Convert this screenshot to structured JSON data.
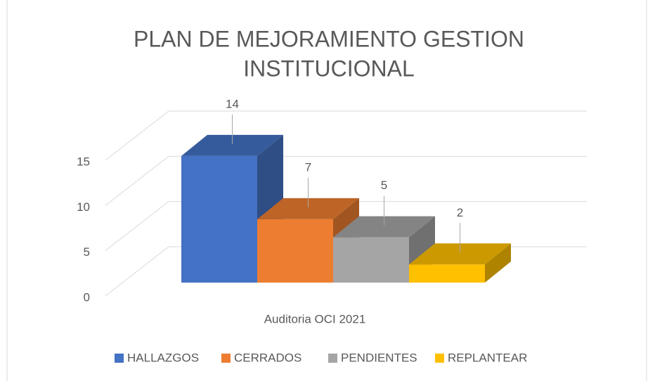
{
  "chart_data": {
    "type": "bar3d",
    "title": [
      "PLAN DE MEJORAMIENTO GESTION",
      "INSTITUCIONAL"
    ],
    "categories": [
      "Auditoria OCI 2021"
    ],
    "series": [
      {
        "name": "HALLAZGOS",
        "color": "#4472c4",
        "values": [
          14
        ]
      },
      {
        "name": "CERRADOS",
        "color": "#ed7d31",
        "values": [
          7
        ]
      },
      {
        "name": "PENDIENTES",
        "color": "#a5a5a5",
        "values": [
          5
        ]
      },
      {
        "name": "REPLANTEAR",
        "color": "#ffc000",
        "values": [
          2
        ]
      }
    ],
    "ylim": [
      0,
      15
    ],
    "yticks": [
      0,
      5,
      10,
      15
    ],
    "grid": true,
    "legend": "bottom"
  }
}
